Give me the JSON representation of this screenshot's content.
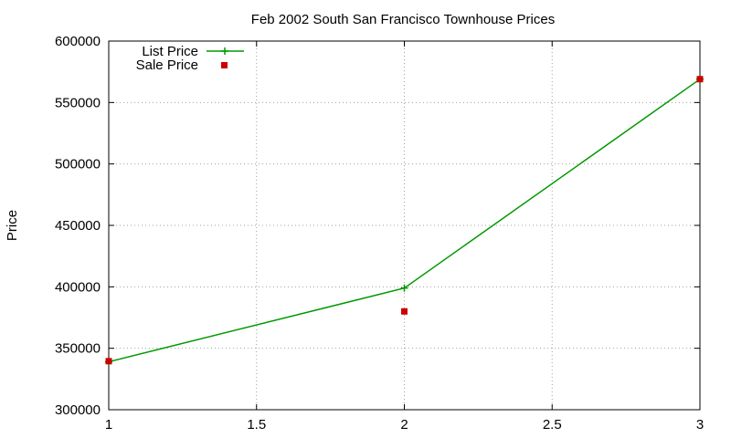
{
  "chart_data": {
    "type": "line",
    "title": "Feb 2002 South San Francisco Townhouse Prices",
    "xlabel": "",
    "ylabel": "Price",
    "xlim": [
      1,
      3
    ],
    "ylim": [
      300000,
      600000
    ],
    "x_ticks": [
      1,
      1.5,
      2,
      2.5,
      3
    ],
    "x_tick_labels": [
      "1",
      "1.5",
      "2",
      "2.5",
      "3"
    ],
    "y_ticks": [
      300000,
      350000,
      400000,
      450000,
      500000,
      550000,
      600000
    ],
    "y_tick_labels": [
      "300000",
      "350000",
      "400000",
      "450000",
      "500000",
      "550000",
      "600000"
    ],
    "grid": true,
    "legend_position": "top-left",
    "series": [
      {
        "name": "List Price",
        "style": "linespoints",
        "color": "#009900",
        "marker": "plus",
        "x": [
          1,
          2,
          3
        ],
        "values": [
          339000,
          399000,
          569000
        ]
      },
      {
        "name": "Sale Price",
        "style": "points",
        "color": "#cc0000",
        "marker": "square",
        "x": [
          1,
          2,
          3
        ],
        "values": [
          339500,
          380000,
          569000
        ]
      }
    ]
  }
}
